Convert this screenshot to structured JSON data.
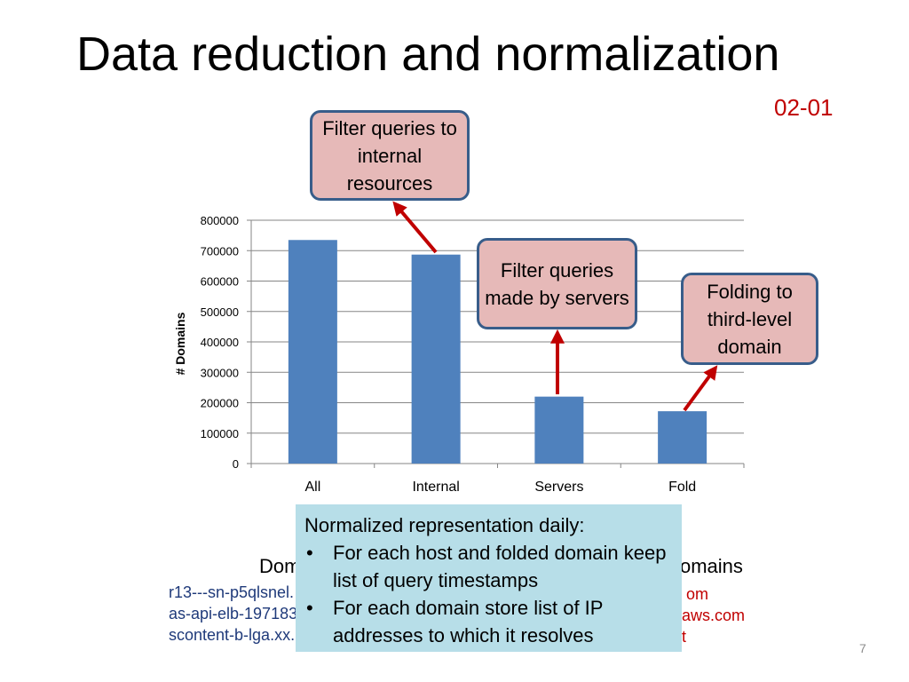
{
  "slide": {
    "title": "Data reduction and normalization",
    "date_label": "02-01",
    "page_number": "7"
  },
  "callouts": {
    "internal": "Filter queries to internal resources",
    "servers": "Filter queries made by servers",
    "fold": "Folding to third-level domain"
  },
  "behind_text": {
    "left_heading": "Dom",
    "right_heading": "omains",
    "left_lines": [
      "r13---sn-p5qlsnel.",
      "as-api-elb-197183",
      "scontent-b-lga.xx."
    ],
    "right_lines": [
      "om",
      "aws.com",
      "t"
    ]
  },
  "note": {
    "heading": "Normalized representation daily:",
    "bullets": [
      "For each host and folded domain keep list of query timestamps",
      "For each domain store list of IP addresses to which it resolves"
    ]
  },
  "colors": {
    "bar": "#4f81bd",
    "arrow": "#c00000",
    "callout_fill": "#e6b9b8",
    "callout_border": "#385d8a",
    "note_fill": "#b7dee8"
  },
  "chart_data": {
    "type": "bar",
    "categories": [
      "All",
      "Internal",
      "Servers",
      "Fold"
    ],
    "values": [
      735000,
      687000,
      220000,
      172000
    ],
    "ylabel": "# Domains",
    "xlabel": "",
    "ylim": [
      0,
      800000
    ],
    "yticks": [
      0,
      100000,
      200000,
      300000,
      400000,
      500000,
      600000,
      700000,
      800000
    ],
    "grid": true
  }
}
